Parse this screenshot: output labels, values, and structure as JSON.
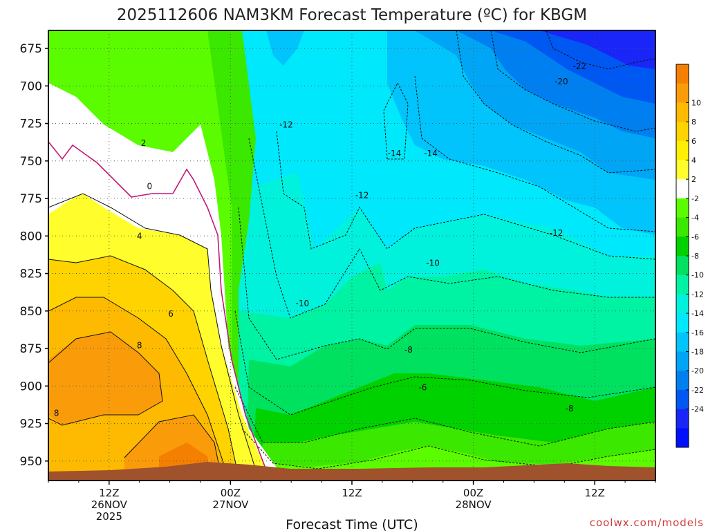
{
  "chart_data": {
    "type": "heatmap",
    "title": "2025112606 NAM3KM Forecast Temperature (ºC) for KBGM",
    "xlabel": "Forecast Time (UTC)",
    "ylabel": "",
    "y_ticks": [
      "675",
      "700",
      "725",
      "750",
      "775",
      "800",
      "825",
      "850",
      "875",
      "900",
      "925",
      "950"
    ],
    "x_ticks": [
      {
        "lines": [
          "12Z",
          "26NOV",
          "2025"
        ],
        "hours": 12
      },
      {
        "lines": [
          "00Z",
          "27NOV"
        ],
        "hours": 24
      },
      {
        "lines": [
          "12Z"
        ],
        "hours": 36
      },
      {
        "lines": [
          "00Z",
          "28NOV"
        ],
        "hours": 48
      },
      {
        "lines": [
          "12Z"
        ],
        "hours": 60
      }
    ],
    "x_range_hours": [
      6,
      66
    ],
    "y_range_hPa": [
      663,
      963
    ],
    "colorbar": {
      "labels": [
        "10",
        "8",
        "6",
        "4",
        "2",
        "-2",
        "-4",
        "-6",
        "-8",
        "-10",
        "-12",
        "-14",
        "-16",
        "-18",
        "-20",
        "-22",
        "-24"
      ],
      "colors": [
        "#f57f00",
        "#fa9c0a",
        "#fdba00",
        "#fed300",
        "#ffef00",
        "#fffe2c",
        "#ffffff",
        "#5bfc00",
        "#3be800",
        "#00d200",
        "#00e25f",
        "#00f2a3",
        "#00f2dd",
        "#00e8fb",
        "#00c4fb",
        "#00a6f5",
        "#0080f0",
        "#0058f2",
        "#1a26f8",
        "#0010ff"
      ]
    },
    "contour_labels": [
      {
        "text": "-22",
        "hours": 58.5,
        "p": 687
      },
      {
        "text": "-20",
        "hours": 56.7,
        "p": 697
      },
      {
        "text": "-12",
        "hours": 29.5,
        "p": 726
      },
      {
        "text": "-14",
        "hours": 40.2,
        "p": 745
      },
      {
        "text": "-14",
        "hours": 43.8,
        "p": 745
      },
      {
        "text": "2",
        "hours": 15.4,
        "p": 738
      },
      {
        "text": "0",
        "hours": 16.0,
        "p": 767
      },
      {
        "text": "-12",
        "hours": 37.0,
        "p": 773
      },
      {
        "text": "-12",
        "hours": 56.2,
        "p": 798
      },
      {
        "text": "4",
        "hours": 15.0,
        "p": 800
      },
      {
        "text": "-10",
        "hours": 44.0,
        "p": 818
      },
      {
        "text": "-10",
        "hours": 31.1,
        "p": 845
      },
      {
        "text": "6",
        "hours": 18.1,
        "p": 852
      },
      {
        "text": "8",
        "hours": 15.0,
        "p": 873
      },
      {
        "text": "-8",
        "hours": 41.6,
        "p": 876
      },
      {
        "text": "-6",
        "hours": 43.0,
        "p": 901
      },
      {
        "text": "-8",
        "hours": 57.5,
        "p": 915
      },
      {
        "text": "8",
        "hours": 6.8,
        "p": 918
      }
    ],
    "terrain_color": "#a0522d",
    "notes": "Time-height cross section of forecast temperature; warm air (up to ~10 ºC) near the surface early, sharp cold front passage near 00Z 27NOV, cold air aloft (-22 ºC) late."
  },
  "credit": "coolwx.com/models"
}
